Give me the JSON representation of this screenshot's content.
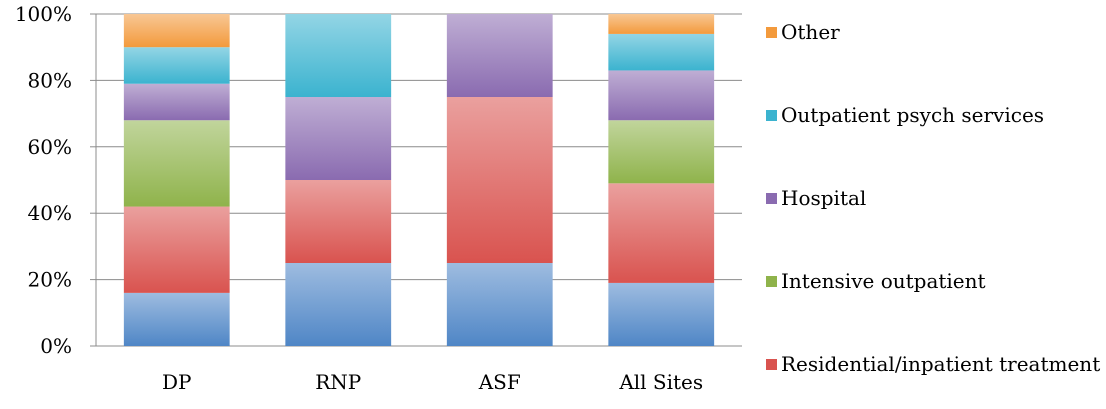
{
  "chart_data": {
    "type": "bar",
    "stacked": true,
    "percent": true,
    "categories": [
      "DP",
      "RNP",
      "ASF",
      "All Sites"
    ],
    "ylim": [
      0,
      100
    ],
    "yticks": [
      "0%",
      "20%",
      "40%",
      "60%",
      "80%",
      "100%"
    ],
    "grid": true,
    "legend_position": "right",
    "series": [
      {
        "name": "",
        "color": "#4f86c6",
        "values": [
          16,
          25,
          25,
          19
        ]
      },
      {
        "name": "Residential/inpatient treatment",
        "color": "#d9534f",
        "values": [
          26,
          25,
          50,
          30
        ]
      },
      {
        "name": "Intensive outpatient",
        "color": "#8fb34b",
        "values": [
          26,
          0,
          0,
          19
        ]
      },
      {
        "name": "Hospital",
        "color": "#8a6bb0",
        "values": [
          11,
          25,
          25,
          15
        ]
      },
      {
        "name": "Outpatient psych services",
        "color": "#3bb3cf",
        "values": [
          11,
          25,
          0,
          11
        ]
      },
      {
        "name": "Other",
        "color": "#f39a3c",
        "values": [
          10,
          0,
          0,
          6
        ]
      }
    ]
  }
}
